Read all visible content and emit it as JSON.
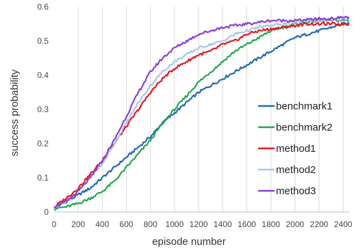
{
  "chart_data": {
    "type": "line",
    "title": "",
    "xlabel": "episode number",
    "ylabel": "success probability",
    "xlim": [
      0,
      2450
    ],
    "ylim": [
      0,
      0.6
    ],
    "x_ticks": [
      0,
      200,
      400,
      600,
      800,
      1000,
      1200,
      1400,
      1600,
      1800,
      2000,
      2200,
      2400
    ],
    "x_tick_labels": [
      "0",
      "200",
      "400",
      "600",
      "800",
      "1000",
      "1200",
      "1400",
      "1600",
      "1800",
      "2000",
      "2200",
      "2400"
    ],
    "y_ticks": [
      0,
      0.1,
      0.2,
      0.3,
      0.4,
      0.5,
      0.6
    ],
    "y_tick_labels": [
      "0",
      "0.1",
      "0.2",
      "0.3",
      "0.4",
      "0.5",
      "0.6"
    ],
    "grid": "vertical",
    "legend_position": "right",
    "x": [
      0,
      100,
      200,
      300,
      400,
      500,
      600,
      700,
      800,
      900,
      1000,
      1100,
      1200,
      1300,
      1400,
      1500,
      1600,
      1700,
      1800,
      1900,
      2000,
      2100,
      2200,
      2300,
      2400,
      2450
    ],
    "series": [
      {
        "name": "benchmark1",
        "color": "#1f6ab4",
        "values": [
          0.015,
          0.03,
          0.05,
          0.07,
          0.1,
          0.13,
          0.16,
          0.19,
          0.22,
          0.26,
          0.29,
          0.32,
          0.35,
          0.37,
          0.39,
          0.41,
          0.43,
          0.45,
          0.47,
          0.49,
          0.51,
          0.52,
          0.53,
          0.54,
          0.55,
          0.55
        ]
      },
      {
        "name": "benchmark2",
        "color": "#21a650",
        "values": [
          0.01,
          0.015,
          0.025,
          0.04,
          0.06,
          0.09,
          0.13,
          0.17,
          0.21,
          0.26,
          0.3,
          0.34,
          0.38,
          0.41,
          0.44,
          0.47,
          0.49,
          0.51,
          0.53,
          0.54,
          0.55,
          0.555,
          0.56,
          0.56,
          0.56,
          0.56
        ]
      },
      {
        "name": "method1",
        "color": "#e8151b",
        "values": [
          0.015,
          0.04,
          0.07,
          0.11,
          0.15,
          0.2,
          0.25,
          0.3,
          0.35,
          0.39,
          0.42,
          0.44,
          0.46,
          0.47,
          0.49,
          0.5,
          0.52,
          0.53,
          0.535,
          0.54,
          0.545,
          0.55,
          0.55,
          0.55,
          0.55,
          0.55
        ]
      },
      {
        "name": "method2",
        "color": "#a9c6e8",
        "values": [
          0.015,
          0.03,
          0.06,
          0.1,
          0.14,
          0.2,
          0.26,
          0.32,
          0.37,
          0.41,
          0.44,
          0.46,
          0.48,
          0.49,
          0.5,
          0.52,
          0.53,
          0.54,
          0.545,
          0.55,
          0.555,
          0.56,
          0.56,
          0.56,
          0.565,
          0.565
        ]
      },
      {
        "name": "method3",
        "color": "#8c3cd6",
        "values": [
          0.015,
          0.03,
          0.06,
          0.1,
          0.15,
          0.21,
          0.28,
          0.35,
          0.41,
          0.45,
          0.48,
          0.5,
          0.52,
          0.53,
          0.54,
          0.545,
          0.55,
          0.555,
          0.56,
          0.56,
          0.56,
          0.562,
          0.565,
          0.565,
          0.57,
          0.57
        ]
      }
    ]
  }
}
